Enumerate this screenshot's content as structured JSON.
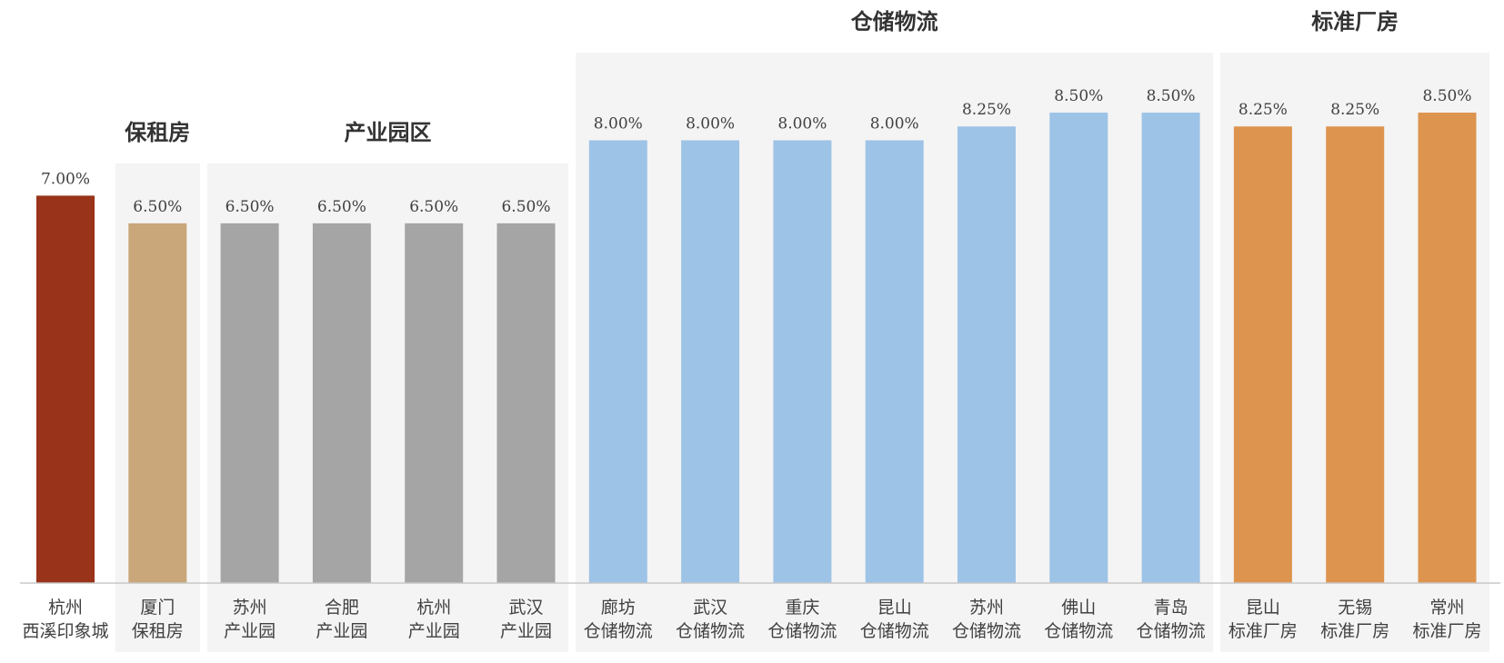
{
  "chart_data": {
    "type": "bar",
    "ylim": [
      0,
      8.5
    ],
    "categories": [
      [
        "杭州",
        "西溪印象城"
      ],
      [
        "厦门",
        "保租房"
      ],
      [
        "苏州",
        "产业园"
      ],
      [
        "合肥",
        "产业园"
      ],
      [
        "杭州",
        "产业园"
      ],
      [
        "武汉",
        "产业园"
      ],
      [
        "廊坊",
        "仓储物流"
      ],
      [
        "武汉",
        "仓储物流"
      ],
      [
        "重庆",
        "仓储物流"
      ],
      [
        "昆山",
        "仓储物流"
      ],
      [
        "苏州",
        "仓储物流"
      ],
      [
        "佛山",
        "仓储物流"
      ],
      [
        "青岛",
        "仓储物流"
      ],
      [
        "昆山",
        "标准厂房"
      ],
      [
        "无锡",
        "标准厂房"
      ],
      [
        "常州",
        "标准厂房"
      ]
    ],
    "values": [
      7.0,
      6.5,
      6.5,
      6.5,
      6.5,
      6.5,
      8.0,
      8.0,
      8.0,
      8.0,
      8.25,
      8.5,
      8.5,
      8.25,
      8.25,
      8.5
    ],
    "value_labels": [
      "7.00%",
      "6.50%",
      "6.50%",
      "6.50%",
      "6.50%",
      "6.50%",
      "8.00%",
      "8.00%",
      "8.00%",
      "8.00%",
      "8.25%",
      "8.50%",
      "8.50%",
      "8.25%",
      "8.25%",
      "8.50%"
    ],
    "colors": [
      "#993319",
      "#c9a77a",
      "#a5a5a5",
      "#a5a5a5",
      "#a5a5a5",
      "#a5a5a5",
      "#9dc3e6",
      "#9dc3e6",
      "#9dc3e6",
      "#9dc3e6",
      "#9dc3e6",
      "#9dc3e6",
      "#9dc3e6",
      "#dd944f",
      "#dd944f",
      "#dd944f"
    ],
    "groups": [
      {
        "label": "保租房",
        "start": 1,
        "end": 1
      },
      {
        "label": "产业园区",
        "start": 2,
        "end": 5
      },
      {
        "label": "仓储物流",
        "start": 6,
        "end": 12
      },
      {
        "label": "标准厂房",
        "start": 13,
        "end": 15
      }
    ],
    "grid": false,
    "legend": "none"
  }
}
